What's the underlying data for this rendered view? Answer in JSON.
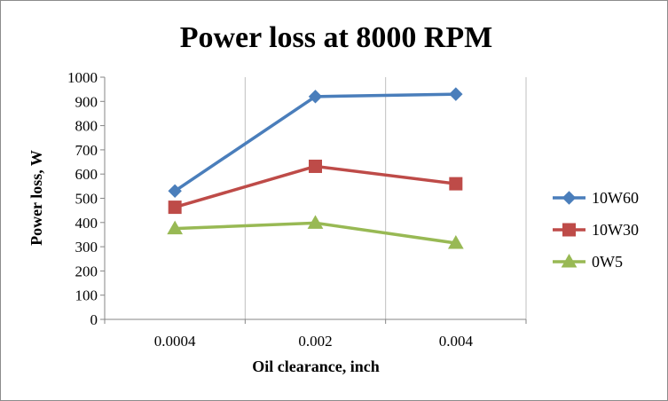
{
  "chart_data": {
    "type": "line",
    "title": "Power loss at 8000 RPM",
    "xlabel": "Oil clearance, inch",
    "ylabel": "Power loss,  W",
    "categories": [
      "0.0004",
      "0.002",
      "0.004"
    ],
    "ylim": [
      0,
      1000
    ],
    "yticks": [
      0,
      100,
      200,
      300,
      400,
      500,
      600,
      700,
      800,
      900,
      1000
    ],
    "grid": "vertical",
    "legend": "right",
    "series": [
      {
        "name": "10W60",
        "values": [
          530,
          920,
          930
        ],
        "color": "#4a7ebb",
        "marker": "diamond"
      },
      {
        "name": "10W30",
        "values": [
          463,
          632,
          560
        ],
        "color": "#be4b48",
        "marker": "square"
      },
      {
        "name": "0W5",
        "values": [
          375,
          398,
          315
        ],
        "color": "#98b954",
        "marker": "triangle"
      }
    ]
  }
}
